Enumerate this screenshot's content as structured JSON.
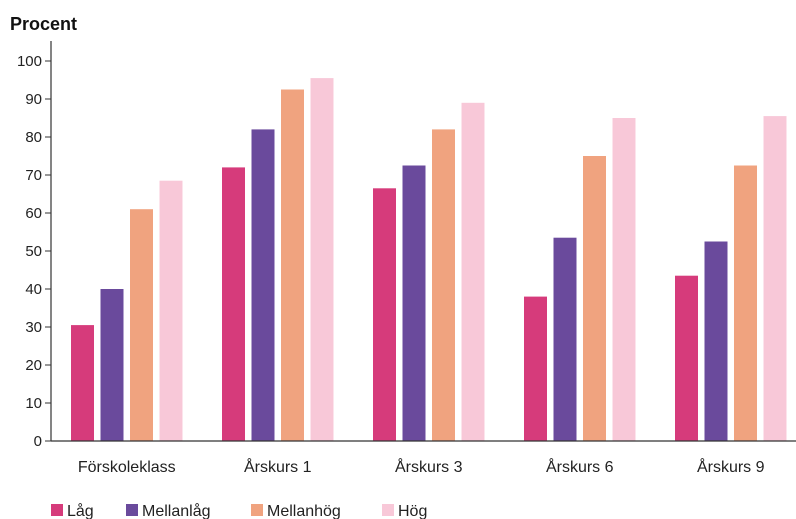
{
  "chart_data": {
    "type": "bar",
    "ylabel": "Procent",
    "xlabel": "",
    "title": "",
    "ylim": [
      0,
      100
    ],
    "yticks": [
      0,
      10,
      20,
      30,
      40,
      50,
      60,
      70,
      80,
      90,
      100
    ],
    "grid": false,
    "legend_position": "bottom-left",
    "categories": [
      "Förskoleklass",
      "Årskurs 1",
      "Årskurs 3",
      "Årskurs 6",
      "Årskurs 9"
    ],
    "series": [
      {
        "name": "Låg",
        "color": "#d63b7b",
        "values": [
          30.5,
          72,
          66.5,
          38,
          43.5
        ]
      },
      {
        "name": "Mellanlåg",
        "color": "#6a4a9c",
        "values": [
          40,
          82,
          72.5,
          53.5,
          52.5
        ]
      },
      {
        "name": "Mellanhög",
        "color": "#f0a37f",
        "values": [
          61,
          92.5,
          82,
          75,
          72.5
        ]
      },
      {
        "name": "Hög",
        "color": "#f8c8d8",
        "values": [
          68.5,
          95.5,
          89,
          85,
          85.5
        ]
      }
    ]
  }
}
